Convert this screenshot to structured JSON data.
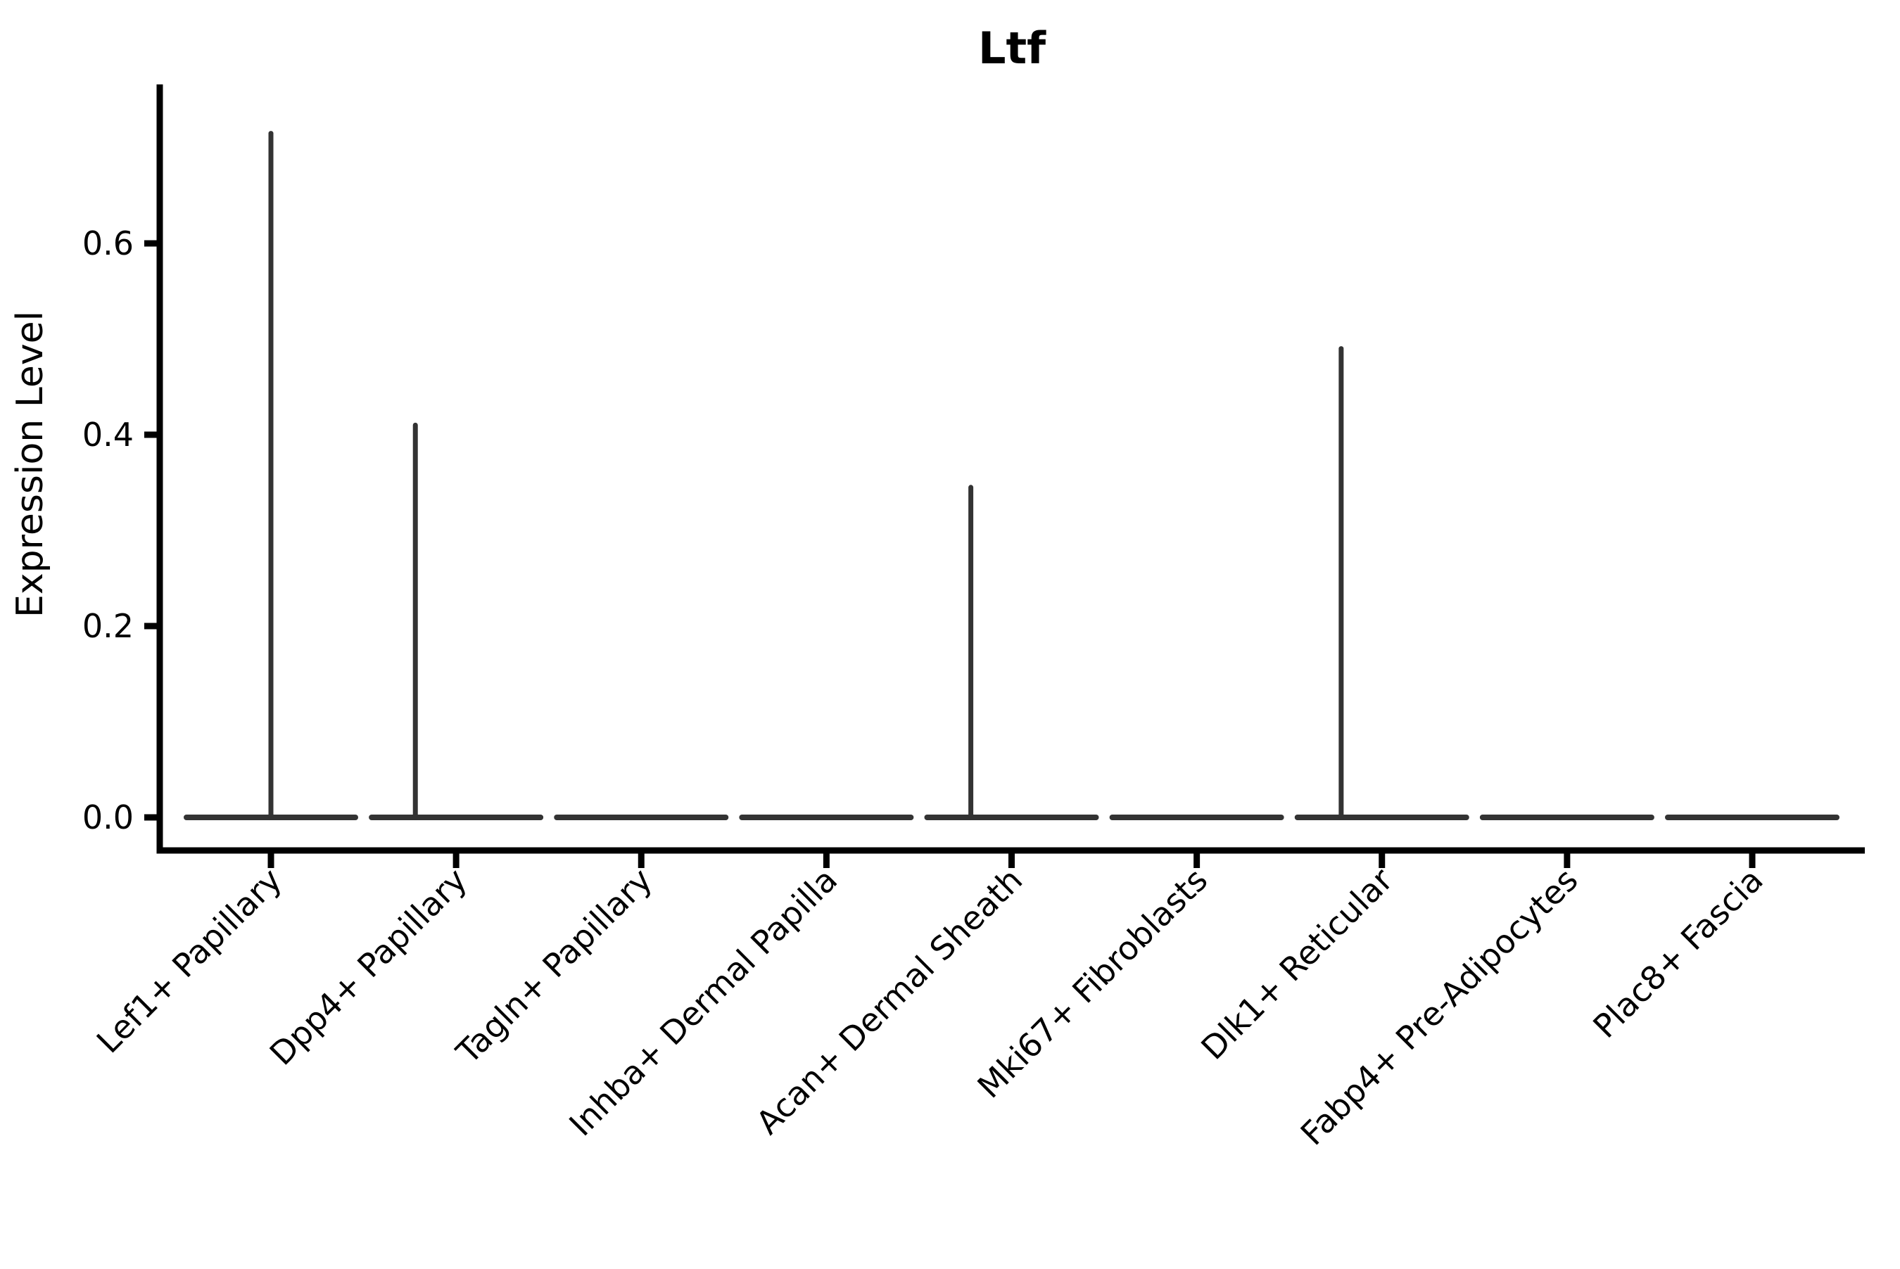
{
  "chart_data": {
    "type": "violin",
    "title": "Ltf",
    "ylabel": "Expression Level",
    "xlabel": "",
    "grid": false,
    "legend": null,
    "background_color": "#ffffff",
    "axis_color": "#000000",
    "violin_color": "#333333",
    "yticks": [
      {
        "value": 0.0,
        "label": "0.0"
      },
      {
        "value": 0.2,
        "label": "0.2"
      },
      {
        "value": 0.4,
        "label": "0.4"
      },
      {
        "value": 0.6,
        "label": "0.6"
      }
    ],
    "ylim": [
      -0.035,
      0.766
    ],
    "categories": [
      "Lef1+ Papillary",
      "Dpp4+ Papillary",
      "Tagln+ Papillary",
      "Inhba+ Dermal Papilla",
      "Acan+ Dermal Sheath",
      "Mki67+ Fibroblasts",
      "Dlk1+ Reticular",
      "Fabp4+ Pre-Adipocytes",
      "Plac8+ Fascia"
    ],
    "violins": [
      {
        "label": "Lef1+ Papillary",
        "bulk": 0.0,
        "peak": 0.715,
        "spike_offset": 0.0
      },
      {
        "label": "Dpp4+ Papillary",
        "bulk": 0.0,
        "peak": 0.41,
        "spike_offset": -0.22
      },
      {
        "label": "Tagln+ Papillary",
        "bulk": 0.0,
        "peak": 0.0,
        "spike_offset": 0.0
      },
      {
        "label": "Inhba+ Dermal Papilla",
        "bulk": 0.0,
        "peak": 0.0,
        "spike_offset": 0.0
      },
      {
        "label": "Acan+ Dermal Sheath",
        "bulk": 0.0,
        "peak": 0.345,
        "spike_offset": -0.22
      },
      {
        "label": "Mki67+ Fibroblasts",
        "bulk": 0.0,
        "peak": 0.0,
        "spike_offset": 0.0
      },
      {
        "label": "Dlk1+ Reticular",
        "bulk": 0.0,
        "peak": 0.49,
        "spike_offset": -0.22
      },
      {
        "label": "Fabp4+ Pre-Adipocytes",
        "bulk": 0.0,
        "peak": 0.0,
        "spike_offset": 0.0
      },
      {
        "label": "Plac8+ Fascia",
        "bulk": 0.0,
        "peak": 0.0,
        "spike_offset": 0.0
      }
    ]
  }
}
